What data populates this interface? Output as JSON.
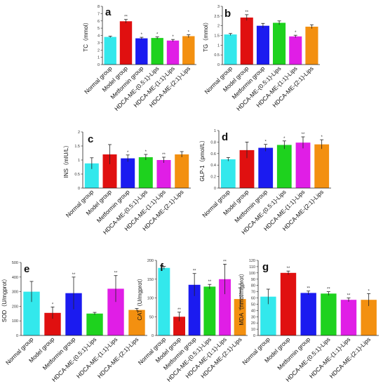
{
  "groups": [
    "Normal group",
    "Model group",
    "Metformin group",
    "HDCA-ME-(0.5:1)-Lips",
    "HDCA-ME-(1:1)-Lips",
    "HDCA-ME-(2:1)-Lips"
  ],
  "colors": [
    "#33e8ec",
    "#e01010",
    "#1b1bf0",
    "#1ed21e",
    "#e01ee6",
    "#f39010"
  ],
  "chart_data": [
    {
      "type": "bar",
      "panel": "a",
      "ylabel": "TC（mmol）",
      "ylim": [
        0,
        8
      ],
      "yticks": [
        0,
        1,
        2,
        3,
        4,
        5,
        6,
        7,
        8
      ],
      "values": [
        3.8,
        5.95,
        3.6,
        3.65,
        3.3,
        3.9
      ],
      "errors": [
        0.1,
        0.25,
        0.15,
        0.15,
        0.15,
        0.2
      ],
      "marks": [
        "",
        "**",
        "*",
        "*",
        "*",
        "*"
      ]
    },
    {
      "type": "bar",
      "panel": "b",
      "ylabel": "TG（mmol）",
      "ylim": [
        0,
        3.0
      ],
      "yticks": [
        0,
        0.5,
        1.0,
        1.5,
        2.0,
        2.5,
        3.0
      ],
      "values": [
        1.55,
        2.42,
        2.0,
        2.15,
        1.45,
        1.95
      ],
      "errors": [
        0.05,
        0.15,
        0.12,
        0.1,
        0.06,
        0.1
      ],
      "marks": [
        "",
        "**",
        "",
        "",
        "*",
        ""
      ]
    },
    {
      "type": "bar",
      "panel": "c",
      "ylabel": "INS（mIU/L）",
      "ylim": [
        0,
        2.0
      ],
      "yticks": [
        0,
        0.5,
        1.0,
        1.5,
        2.0
      ],
      "values": [
        0.88,
        1.2,
        1.06,
        1.1,
        1.0,
        1.2
      ],
      "errors": [
        0.2,
        0.35,
        0.12,
        0.1,
        0.1,
        0.1
      ],
      "marks": [
        "",
        "",
        "*",
        "*",
        "**",
        ""
      ]
    },
    {
      "type": "bar",
      "panel": "d",
      "ylabel": "GLP-1（pmol/L）",
      "ylim": [
        0,
        1.0
      ],
      "yticks": [
        0,
        0.2,
        0.4,
        0.6,
        0.8,
        1.0
      ],
      "values": [
        0.5,
        0.66,
        0.7,
        0.75,
        0.79,
        0.76
      ],
      "errors": [
        0.03,
        0.14,
        0.06,
        0.07,
        0.1,
        0.08
      ],
      "marks": [
        "",
        "",
        "*",
        "*",
        "**",
        "*"
      ]
    },
    {
      "type": "bar",
      "panel": "e",
      "ylabel": "SOD（U/mgprot）",
      "ylim": [
        0,
        500
      ],
      "yticks": [
        0,
        100,
        200,
        300,
        400,
        500
      ],
      "values": [
        300,
        155,
        290,
        150,
        320,
        175
      ],
      "errors": [
        70,
        40,
        110,
        8,
        90,
        10
      ],
      "marks": [
        "",
        "*",
        "**",
        "",
        "**",
        ""
      ]
    },
    {
      "type": "bar",
      "panel": "f",
      "ylabel": "CAT（U/mgprot）",
      "ylim": [
        0,
        200
      ],
      "yticks": [
        0,
        50,
        100,
        150,
        200
      ],
      "values": [
        180,
        50,
        135,
        130,
        150,
        97
      ],
      "errors": [
        4,
        12,
        30,
        6,
        40,
        30
      ],
      "marks": [
        "",
        "**",
        "**",
        "**",
        "**",
        "**"
      ]
    },
    {
      "type": "bar",
      "panel": "g",
      "ylabel": "MDA（nmol/mgprot）",
      "ylim": [
        0,
        120
      ],
      "yticks": [
        0,
        10,
        20,
        30,
        40,
        50,
        60,
        70,
        80,
        90,
        100,
        110,
        120
      ],
      "values": [
        62,
        100,
        68,
        67,
        57,
        57
      ],
      "errors": [
        12,
        3,
        3,
        3,
        3,
        10
      ],
      "marks": [
        "",
        "**",
        "**",
        "**",
        "**",
        "*"
      ]
    }
  ]
}
